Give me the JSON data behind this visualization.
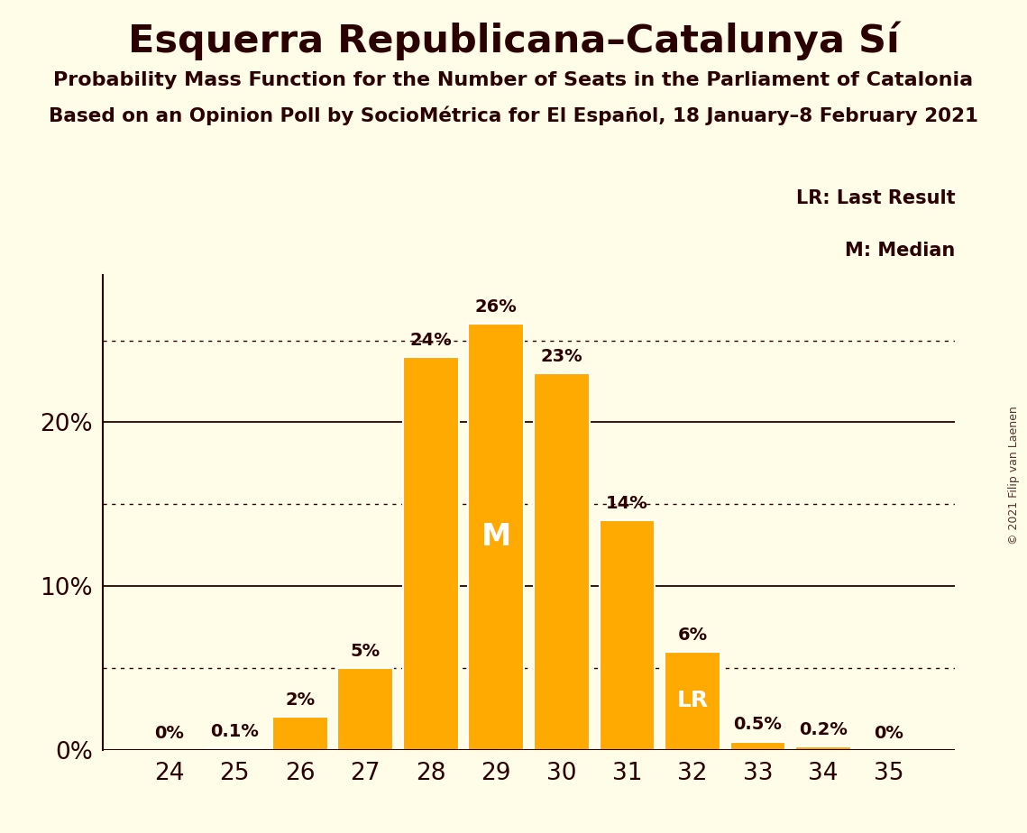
{
  "title": "Esquerra Republicana–Catalunya Sí",
  "subtitle1": "Probability Mass Function for the Number of Seats in the Parliament of Catalonia",
  "subtitle2": "Based on an Opinion Poll by SocioMétrica for El Español, 18 January–8 February 2021",
  "copyright": "© 2021 Filip van Laenen",
  "seats": [
    24,
    25,
    26,
    27,
    28,
    29,
    30,
    31,
    32,
    33,
    34,
    35
  ],
  "values": [
    0.0,
    0.1,
    2.0,
    5.0,
    24.0,
    26.0,
    23.0,
    14.0,
    6.0,
    0.5,
    0.2,
    0.0
  ],
  "bar_color": "#FFAA00",
  "bar_edge_color": "#FFFFFF",
  "background_color": "#FFFDE8",
  "text_color": "#2B0000",
  "median_seat": 29,
  "lr_seat": 32,
  "label_values": [
    "0%",
    "0.1%",
    "2%",
    "5%",
    "24%",
    "26%",
    "23%",
    "14%",
    "6%",
    "0.5%",
    "0.2%",
    "0%"
  ],
  "yticks": [
    0,
    10,
    20
  ],
  "ylim": [
    0,
    29
  ],
  "dotted_lines": [
    5,
    15,
    25
  ],
  "legend_lr": "LR: Last Result",
  "legend_m": "M: Median"
}
